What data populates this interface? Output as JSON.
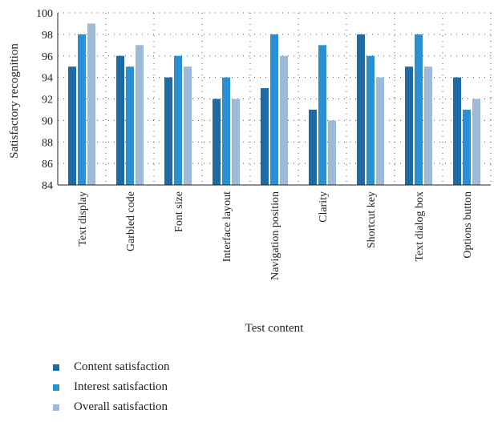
{
  "chart_data": {
    "type": "bar",
    "xlabel": "Test content",
    "ylabel": "Satisfactory recognition",
    "ylim": [
      84,
      100
    ],
    "yticks": [
      84,
      86,
      88,
      90,
      92,
      94,
      96,
      98,
      100
    ],
    "grid": "dotted",
    "legend_position": "bottom-left",
    "categories": [
      "Text display",
      "Garbled code",
      "Font size",
      "Interface layout",
      "Navigation position",
      "Clarity",
      "Shortcut key",
      "Text dialog box",
      "Options button"
    ],
    "series": [
      {
        "name": "Content satisfaction",
        "color": "#1d6aa4",
        "values": [
          95,
          96,
          94,
          92,
          93,
          91,
          98,
          95,
          94
        ]
      },
      {
        "name": "Interest satisfaction",
        "color": "#2b8fd3",
        "values": [
          98,
          95,
          96,
          94,
          98,
          97,
          96,
          98,
          91
        ]
      },
      {
        "name": "Overall satisfaction",
        "color": "#9dbad8",
        "values": [
          99,
          97,
          95,
          92,
          96,
          90,
          94,
          95,
          92
        ]
      }
    ]
  }
}
